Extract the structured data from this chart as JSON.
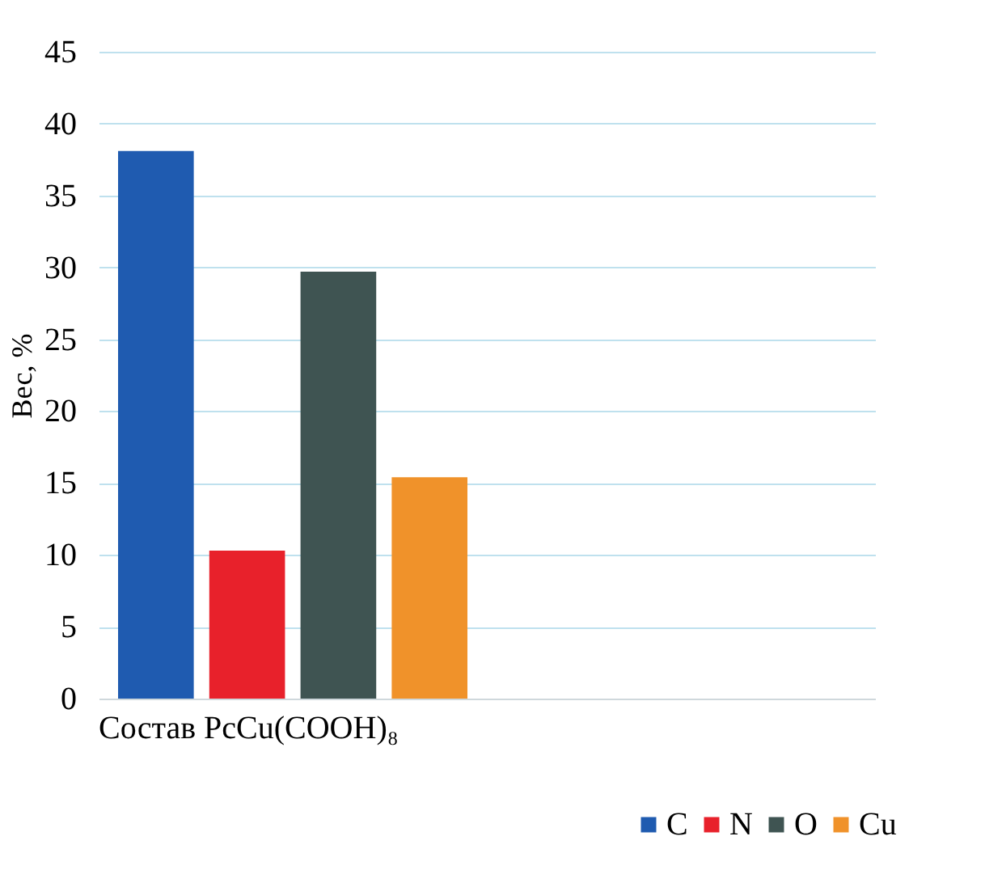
{
  "chart_data": {
    "type": "bar",
    "categories": [
      "Состав PcCu(COOH)₈",
      null
    ],
    "ylabel": "Вес, %",
    "series": [
      {
        "name": "C",
        "color": "#1f5bb0",
        "values": [
          38.1,
          null
        ]
      },
      {
        "name": "N",
        "color": "#e8212b",
        "values": [
          10.3,
          null
        ]
      },
      {
        "name": "O",
        "color": "#3f5452",
        "values": [
          29.7,
          null
        ]
      },
      {
        "name": "Cu",
        "color": "#f0922a",
        "values": [
          15.4,
          null
        ]
      }
    ],
    "ylim": [
      0,
      45
    ],
    "yticks": [
      0,
      5,
      10,
      15,
      20,
      25,
      30,
      35,
      40,
      45
    ],
    "grid": "y",
    "legend": "bottom right"
  }
}
